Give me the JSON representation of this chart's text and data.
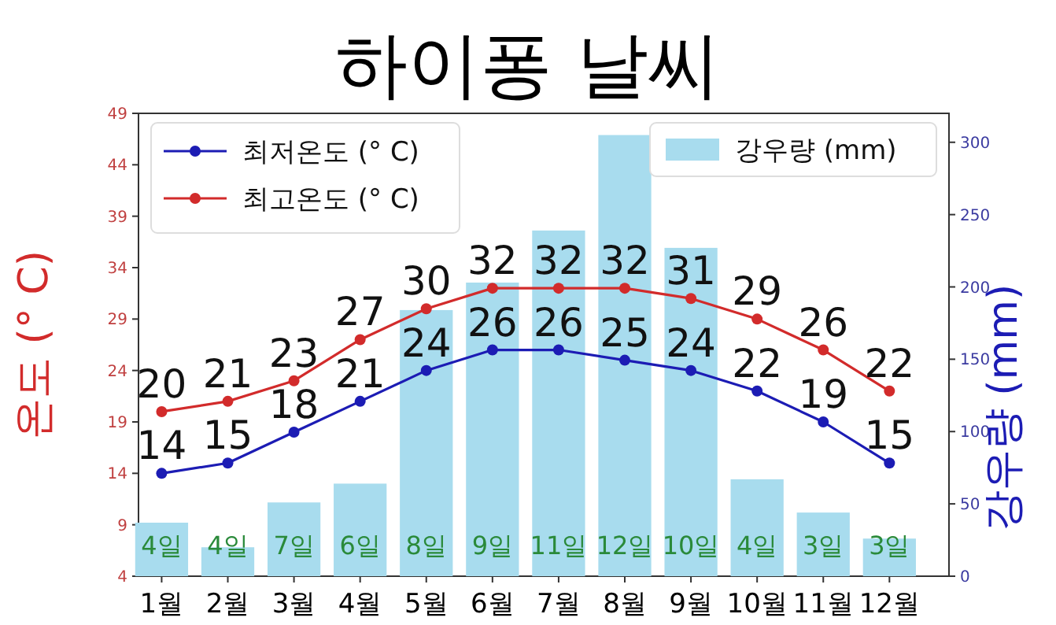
{
  "chart_data": {
    "type": "line",
    "title": "하이퐁 날씨",
    "ylabel": "온도 (°  C)",
    "y2label": "강우량 (mm)",
    "categories": [
      "1월",
      "2월",
      "3월",
      "4월",
      "5월",
      "6월",
      "7월",
      "8월",
      "9월",
      "10월",
      "11월",
      "12월"
    ],
    "series": [
      {
        "name": "최저온도 (°  C)",
        "color": "#1c1cb4",
        "values": [
          14,
          15,
          18,
          21,
          24,
          26,
          26,
          25,
          24,
          22,
          19,
          15
        ],
        "value_labels": [
          "14",
          "15",
          "18",
          "21",
          "24",
          "26",
          "26",
          "25",
          "24",
          "22",
          "19",
          "15"
        ]
      },
      {
        "name": "최고온도 (°  C)",
        "color": "#d22b2b",
        "values": [
          20,
          21,
          23,
          27,
          30,
          32,
          32,
          32,
          31,
          29,
          26,
          22
        ],
        "value_labels": [
          "20",
          "21",
          "23",
          "27",
          "30",
          "32",
          "32",
          "32",
          "31",
          "29",
          "26",
          "22"
        ]
      },
      {
        "name": "강우량 (mm)",
        "type": "bar",
        "axis": "y2",
        "color": "#a8dcee",
        "values": [
          37,
          20,
          51,
          64,
          184,
          203,
          239,
          305,
          227,
          67,
          44,
          26
        ]
      }
    ],
    "marker": "circle",
    "legend": "top",
    "ylim": [
      4,
      49
    ],
    "yticks": [
      4,
      9,
      14,
      19,
      24,
      29,
      34,
      39,
      44,
      49
    ],
    "y2lim": [
      0,
      320
    ],
    "y2ticks": [
      0,
      50,
      100,
      150,
      200,
      250,
      300
    ],
    "annotations": [
      "4일",
      "4일",
      "7일",
      "6일",
      "8일",
      "9일",
      "11일",
      "12일",
      "10일",
      "4일",
      "3일",
      "3일"
    ]
  }
}
